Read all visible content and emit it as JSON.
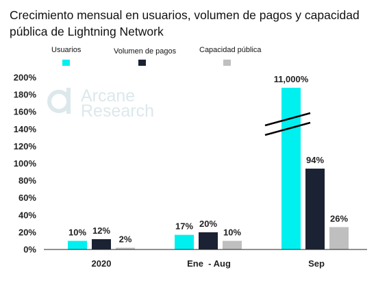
{
  "title": "Crecimiento mensual en usuarios, volumen de pagos y capacidad pública de Lightning Network",
  "watermark": {
    "line1": "Arcane",
    "line2": "Research",
    "color": "#dce8ec"
  },
  "chart_data": {
    "type": "bar",
    "categories": [
      "2020",
      "Ene  - Aug",
      "Sep"
    ],
    "series": [
      {
        "name": "Usuarios",
        "color": "#00f0f0",
        "values": [
          10,
          17,
          11000
        ],
        "labels": [
          "10%",
          "17%",
          "11,000%"
        ]
      },
      {
        "name": "Volumen de pagos",
        "color": "#1a2233",
        "values": [
          12,
          20,
          94
        ],
        "labels": [
          "12%",
          "20%",
          "94%"
        ]
      },
      {
        "name": "Capacidad pública",
        "color": "#bfbfbf",
        "values": [
          2,
          10,
          26
        ],
        "labels": [
          "2%",
          "10%",
          "26%"
        ]
      }
    ],
    "y_ticks": [
      0,
      20,
      40,
      60,
      80,
      100,
      120,
      140,
      160,
      180,
      200
    ],
    "y_tick_labels": [
      "0%",
      "20%",
      "40%",
      "60%",
      "80%",
      "100%",
      "120%",
      "140%",
      "160%",
      "180%",
      "200%"
    ],
    "ylim": [
      0,
      200
    ],
    "axis_break": {
      "series": "Usuarios",
      "category": "Sep"
    },
    "grid": false,
    "legend_position": "top"
  }
}
